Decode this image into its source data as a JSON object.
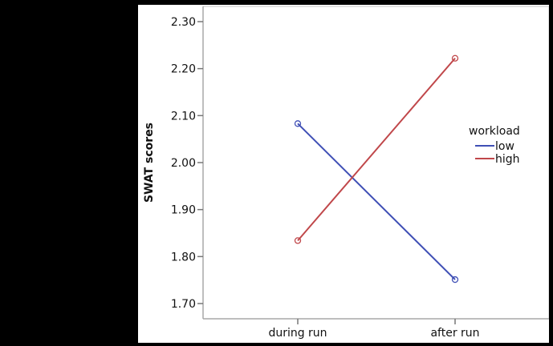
{
  "chart_data": {
    "type": "line",
    "title": "",
    "xlabel": "",
    "ylabel": "SWAT scores",
    "categories": [
      "during run",
      "after run"
    ],
    "series": [
      {
        "name": "low",
        "color": "#3f4fb5",
        "values": [
          2.083,
          1.751
        ]
      },
      {
        "name": "high",
        "color": "#c0474a",
        "values": [
          1.834,
          2.222
        ]
      }
    ],
    "ylim": [
      1.67,
      2.33
    ],
    "yticks": [
      "1.70",
      "1.80",
      "1.90",
      "2.00",
      "2.10",
      "2.20",
      "2.30"
    ],
    "grid": false,
    "legend": {
      "title": "workload",
      "position": "right"
    }
  }
}
